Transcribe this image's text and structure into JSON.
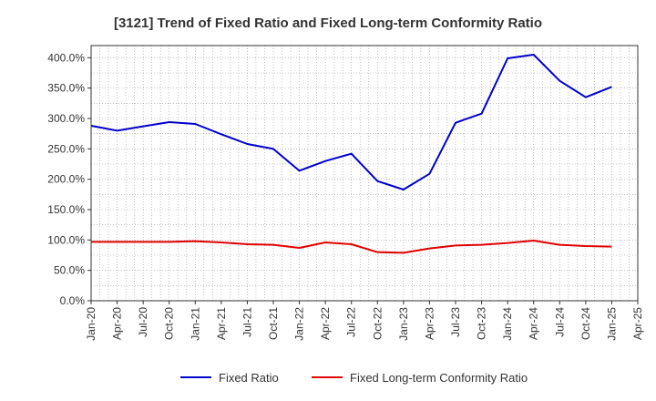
{
  "chart_data": {
    "type": "line",
    "title": "[3121]  Trend of Fixed Ratio and Fixed Long-term Conformity Ratio",
    "xlabel": "",
    "ylabel": "",
    "ylim": [
      0,
      400
    ],
    "y_ticks": [
      "0.0%",
      "50.0%",
      "100.0%",
      "150.0%",
      "200.0%",
      "250.0%",
      "300.0%",
      "350.0%",
      "400.0%"
    ],
    "x_ticks": [
      "Jan-20",
      "Apr-20",
      "Jul-20",
      "Oct-20",
      "Jan-21",
      "Apr-21",
      "Jul-21",
      "Oct-21",
      "Jan-22",
      "Apr-22",
      "Jul-22",
      "Oct-22",
      "Jan-23",
      "Apr-23",
      "Jul-23",
      "Oct-23",
      "Jan-24",
      "Apr-24",
      "Jul-24",
      "Oct-24",
      "Jan-25",
      "Apr-25"
    ],
    "grid": true,
    "legend_position": "bottom",
    "x": [
      "Jan-20",
      "Apr-20",
      "Jul-20",
      "Oct-20",
      "Jan-21",
      "Apr-21",
      "Jul-21",
      "Oct-21",
      "Jan-22",
      "Apr-22",
      "Jul-22",
      "Oct-22",
      "Jan-23",
      "Apr-23",
      "Jul-23",
      "Oct-23",
      "Jan-24",
      "Apr-24",
      "Jul-24",
      "Oct-24",
      "Jan-25"
    ],
    "series": [
      {
        "name": "Fixed Ratio",
        "color": "#0000cc",
        "values": [
          288,
          280,
          287,
          294,
          291,
          274,
          258,
          250,
          214,
          230,
          242,
          197,
          183,
          209,
          293,
          308,
          399,
          405,
          362,
          335,
          352
        ]
      },
      {
        "name": "Fixed Long-term Conformity Ratio",
        "color": "#e00000",
        "values": [
          97,
          97,
          97,
          97,
          98,
          96,
          93,
          92,
          87,
          96,
          93,
          80,
          79,
          86,
          91,
          92,
          95,
          99,
          92,
          90,
          89
        ]
      }
    ]
  }
}
